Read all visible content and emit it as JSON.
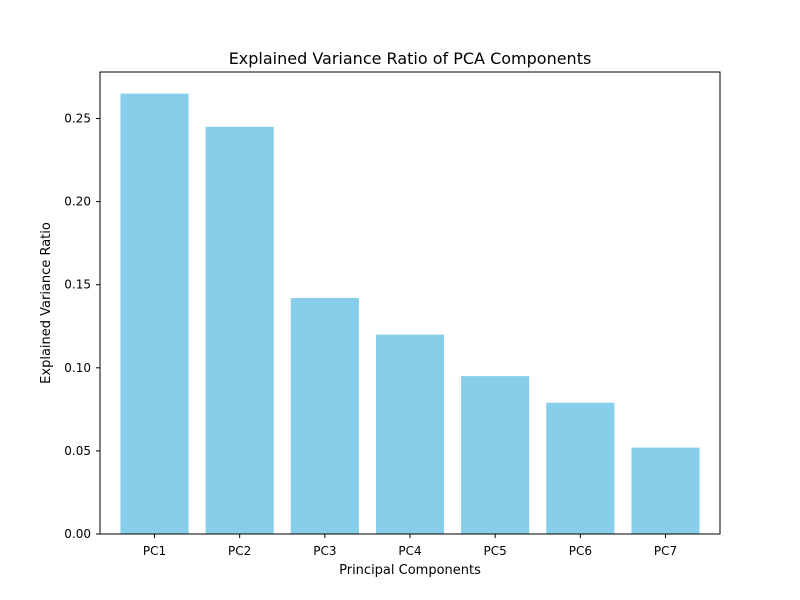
{
  "chart_data": {
    "type": "bar",
    "title": "Explained Variance Ratio of PCA Components",
    "xlabel": "Principal Components",
    "ylabel": "Explained Variance Ratio",
    "categories": [
      "PC1",
      "PC2",
      "PC3",
      "PC4",
      "PC5",
      "PC6",
      "PC7"
    ],
    "values": [
      0.265,
      0.245,
      0.142,
      0.12,
      0.095,
      0.079,
      0.052
    ],
    "ylim": [
      0,
      0.278
    ],
    "yticks": [
      0.0,
      0.05,
      0.1,
      0.15,
      0.2,
      0.25
    ],
    "ytick_labels": [
      "0.00",
      "0.05",
      "0.10",
      "0.15",
      "0.20",
      "0.25"
    ],
    "bar_color": "#87ceeb",
    "grid": false,
    "legend": "none"
  }
}
